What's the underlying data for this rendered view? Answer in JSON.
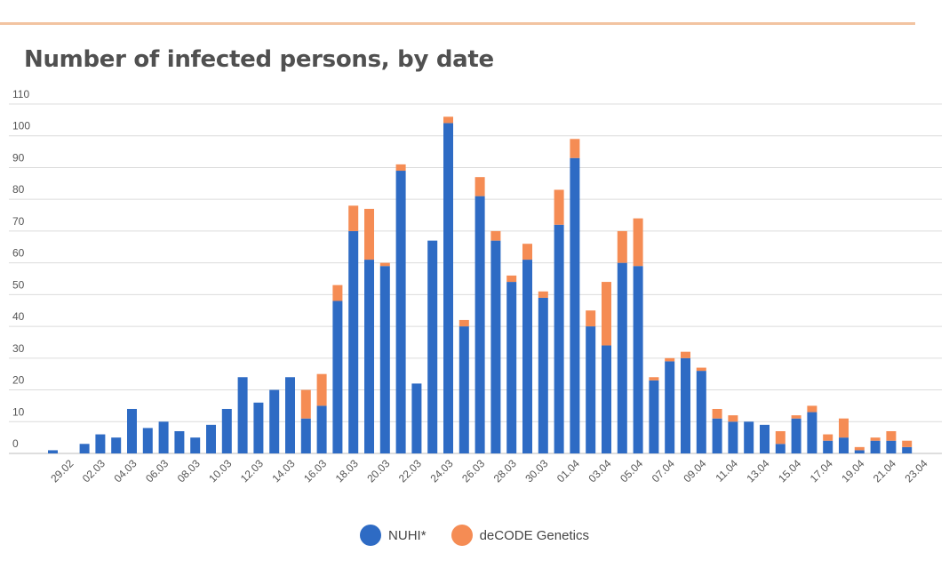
{
  "title": "Number of infected persons, by date",
  "colors": {
    "nuhi": "#2e6bc4",
    "decode": "#f58c54",
    "grid": "#dcdcdc",
    "accent_rule": "#f2c4a1"
  },
  "legend": [
    {
      "label": "NUHI*",
      "color": "#2e6bc4"
    },
    {
      "label": "deCODE Genetics",
      "color": "#f58c54"
    }
  ],
  "chart_data": {
    "type": "bar",
    "stacked": true,
    "title": "Number of infected persons, by date",
    "xlabel": "",
    "ylabel": "",
    "ylim": [
      0,
      110
    ],
    "y_ticks": [
      0,
      10,
      20,
      30,
      40,
      50,
      60,
      70,
      80,
      90,
      100,
      110
    ],
    "grid": true,
    "legend_position": "bottom",
    "categories": [
      "28.02",
      "29.02",
      "01.03",
      "02.03",
      "03.03",
      "04.03",
      "05.03",
      "06.03",
      "07.03",
      "08.03",
      "09.03",
      "10.03",
      "11.03",
      "12.03",
      "13.03",
      "14.03",
      "15.03",
      "16.03",
      "17.03",
      "18.03",
      "19.03",
      "20.03",
      "21.03",
      "22.03",
      "23.03",
      "24.03",
      "25.03",
      "26.03",
      "27.03",
      "28.03",
      "29.03",
      "30.03",
      "31.03",
      "01.04",
      "02.04",
      "03.04",
      "04.04",
      "05.04",
      "06.04",
      "07.04",
      "08.04",
      "09.04",
      "10.04",
      "11.04",
      "12.04",
      "13.04",
      "14.04",
      "15.04",
      "16.04",
      "17.04",
      "18.04",
      "19.04",
      "20.04",
      "21.04",
      "22.04",
      "23.04"
    ],
    "tick_labels": [
      "29.02",
      "02.03",
      "04.03",
      "06.03",
      "08.03",
      "10.03",
      "12.03",
      "14.03",
      "16.03",
      "18.03",
      "20.03",
      "22.03",
      "24.03",
      "26.03",
      "28.03",
      "30.03",
      "01.04",
      "03.04",
      "05.04",
      "07.04",
      "09.04",
      "11.04",
      "13.04",
      "15.04",
      "17.04",
      "19.04",
      "21.04",
      "23.04"
    ],
    "series": [
      {
        "name": "NUHI*",
        "color": "#2e6bc4",
        "values": [
          1,
          0,
          3,
          6,
          5,
          14,
          8,
          10,
          7,
          5,
          9,
          14,
          24,
          16,
          20,
          24,
          11,
          15,
          48,
          70,
          61,
          59,
          89,
          22,
          67,
          104,
          40,
          81,
          67,
          54,
          61,
          49,
          72,
          93,
          40,
          34,
          60,
          59,
          23,
          29,
          30,
          26,
          11,
          10,
          10,
          9,
          3,
          11,
          13,
          4,
          5,
          1,
          4,
          4,
          2,
          0
        ]
      },
      {
        "name": "deCODE Genetics",
        "color": "#f58c54",
        "values": [
          0,
          0,
          0,
          0,
          0,
          0,
          0,
          0,
          0,
          0,
          0,
          0,
          0,
          0,
          0,
          0,
          9,
          10,
          5,
          8,
          16,
          1,
          2,
          0,
          0,
          2,
          2,
          6,
          3,
          2,
          5,
          2,
          11,
          6,
          5,
          20,
          10,
          15,
          1,
          1,
          2,
          1,
          3,
          2,
          0,
          0,
          4,
          1,
          2,
          2,
          6,
          1,
          1,
          3,
          2,
          0
        ]
      }
    ]
  }
}
